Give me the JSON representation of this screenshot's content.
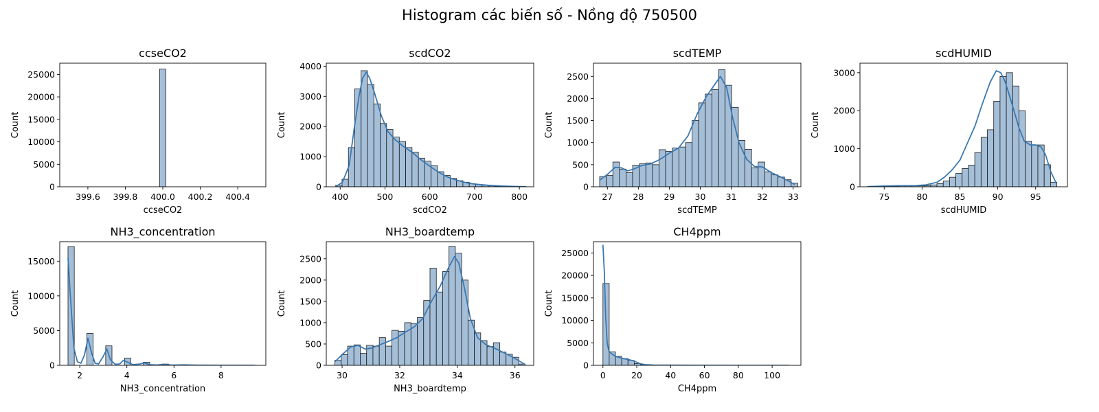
{
  "figure": {
    "suptitle": "Histogram các biến số - Nồng độ 750500",
    "colors": {
      "bar_fill": "#a5bfd9",
      "bar_edge": "#1a1a1a",
      "kde": "#3a78b0",
      "axes": "#000000"
    }
  },
  "chart_data": [
    {
      "type": "bar",
      "title": "ccseCO2",
      "xlabel": "ccseCO2",
      "ylabel": "Count",
      "xlim": [
        399.45,
        400.55
      ],
      "ylim": [
        0,
        27500
      ],
      "xticks": [
        399.6,
        399.8,
        400.0,
        400.2,
        400.4
      ],
      "xtick_labels": [
        "399.6",
        "399.8",
        "400.0",
        "400.2",
        "400.4"
      ],
      "yticks": [
        0,
        5000,
        10000,
        15000,
        20000,
        25000
      ],
      "bins": {
        "start": 399.983,
        "width": 0.0333
      },
      "values": [
        26200
      ],
      "kde": []
    },
    {
      "type": "bar",
      "title": "scdCO2",
      "xlabel": "scdCO2",
      "ylabel": "Count",
      "xlim": [
        369,
        832
      ],
      "ylim": [
        0,
        4100
      ],
      "xticks": [
        400,
        500,
        600,
        700,
        800
      ],
      "xtick_labels": [
        "400",
        "500",
        "600",
        "700",
        "800"
      ],
      "yticks": [
        0,
        1000,
        2000,
        3000,
        4000
      ],
      "bins": {
        "start": 390,
        "width": 14.2
      },
      "values": [
        50,
        250,
        1300,
        3250,
        3850,
        3400,
        2750,
        2100,
        1900,
        1650,
        1500,
        1300,
        1150,
        950,
        850,
        700,
        500,
        380,
        280,
        200,
        150,
        100,
        70,
        50,
        30,
        20,
        12,
        8,
        5,
        3
      ],
      "kde": [
        [
          390,
          0
        ],
        [
          405,
          150
        ],
        [
          420,
          700
        ],
        [
          432,
          2000
        ],
        [
          442,
          3000
        ],
        [
          450,
          3600
        ],
        [
          458,
          3800
        ],
        [
          466,
          3600
        ],
        [
          478,
          3050
        ],
        [
          492,
          2350
        ],
        [
          506,
          1850
        ],
        [
          520,
          1600
        ],
        [
          540,
          1350
        ],
        [
          560,
          1150
        ],
        [
          580,
          900
        ],
        [
          600,
          680
        ],
        [
          620,
          480
        ],
        [
          640,
          320
        ],
        [
          660,
          220
        ],
        [
          680,
          140
        ],
        [
          700,
          90
        ],
        [
          730,
          50
        ],
        [
          760,
          25
        ],
        [
          790,
          10
        ],
        [
          815,
          5
        ]
      ]
    },
    {
      "type": "bar",
      "title": "scdTEMP",
      "xlabel": "scdTEMP",
      "ylabel": "Count",
      "xlim": [
        26.55,
        33.25
      ],
      "ylim": [
        0,
        2800
      ],
      "xticks": [
        27,
        28,
        29,
        30,
        31,
        32,
        33
      ],
      "xtick_labels": [
        "27",
        "28",
        "29",
        "30",
        "31",
        "32",
        "33"
      ],
      "yticks": [
        0,
        500,
        1000,
        1500,
        2000,
        2500
      ],
      "bins": {
        "start": 26.75,
        "width": 0.2133
      },
      "values": [
        230,
        260,
        560,
        400,
        320,
        490,
        520,
        540,
        500,
        840,
        800,
        880,
        900,
        1000,
        1500,
        1900,
        2100,
        2200,
        2650,
        2300,
        1800,
        1050,
        850,
        430,
        560,
        340,
        270,
        220,
        160,
        80
      ],
      "kde": [
        [
          26.75,
          150
        ],
        [
          27.0,
          280
        ],
        [
          27.25,
          440
        ],
        [
          27.45,
          430
        ],
        [
          27.65,
          360
        ],
        [
          27.85,
          400
        ],
        [
          28.1,
          480
        ],
        [
          28.4,
          520
        ],
        [
          28.7,
          620
        ],
        [
          29.0,
          760
        ],
        [
          29.3,
          880
        ],
        [
          29.6,
          1150
        ],
        [
          29.9,
          1650
        ],
        [
          30.2,
          2050
        ],
        [
          30.45,
          2300
        ],
        [
          30.65,
          2500
        ],
        [
          30.85,
          2250
        ],
        [
          31.05,
          1550
        ],
        [
          31.25,
          1000
        ],
        [
          31.5,
          620
        ],
        [
          31.75,
          460
        ],
        [
          32.0,
          450
        ],
        [
          32.3,
          320
        ],
        [
          32.6,
          220
        ],
        [
          32.85,
          130
        ],
        [
          33.05,
          50
        ]
      ]
    },
    {
      "type": "bar",
      "title": "scdHUMID",
      "xlabel": "scdHUMID",
      "ylabel": "Count",
      "xlim": [
        71.8,
        99.2
      ],
      "ylim": [
        0,
        3250
      ],
      "xticks": [
        75,
        80,
        85,
        90,
        95
      ],
      "xtick_labels": [
        "75",
        "80",
        "85",
        "90",
        "95"
      ],
      "yticks": [
        0,
        1000,
        2000,
        3000
      ],
      "bins": {
        "start": 72.8,
        "width": 0.8333
      },
      "values": [
        5,
        5,
        10,
        15,
        20,
        25,
        25,
        25,
        25,
        30,
        50,
        80,
        150,
        250,
        350,
        480,
        570,
        900,
        1300,
        1500,
        2250,
        2900,
        3000,
        2650,
        2000,
        1200,
        1100,
        1100,
        580,
        120
      ],
      "kde": [
        [
          72.8,
          5
        ],
        [
          75,
          20
        ],
        [
          77,
          30
        ],
        [
          79,
          30
        ],
        [
          80.5,
          50
        ],
        [
          82,
          120
        ],
        [
          83,
          260
        ],
        [
          84,
          450
        ],
        [
          85,
          700
        ],
        [
          86,
          1150
        ],
        [
          87,
          1600
        ],
        [
          88,
          2200
        ],
        [
          89,
          2750
        ],
        [
          89.8,
          3050
        ],
        [
          90.4,
          3000
        ],
        [
          91,
          2750
        ],
        [
          92,
          2100
        ],
        [
          92.8,
          1550
        ],
        [
          93.5,
          1200
        ],
        [
          94.3,
          1100
        ],
        [
          95,
          1100
        ],
        [
          95.7,
          1050
        ],
        [
          96.3,
          850
        ],
        [
          97,
          400
        ],
        [
          97.8,
          60
        ]
      ]
    },
    {
      "type": "bar",
      "title": "NH3_concentration",
      "xlabel": "NH3_concentration",
      "ylabel": "Count",
      "xlim": [
        1.15,
        9.9
      ],
      "ylim": [
        0,
        17800
      ],
      "xticks": [
        2,
        4,
        6,
        8
      ],
      "xtick_labels": [
        "2",
        "4",
        "6",
        "8"
      ],
      "yticks": [
        0,
        5000,
        10000,
        15000
      ],
      "bins": {
        "start": 1.5,
        "width": 0.2667
      },
      "values": [
        17100,
        0,
        0,
        4600,
        0,
        0,
        2800,
        0,
        0,
        1050,
        0,
        0,
        450,
        0,
        0,
        180,
        0,
        0,
        100,
        0,
        0,
        60,
        0,
        0,
        40,
        0,
        0,
        30,
        0,
        20
      ],
      "kde": [
        [
          1.5,
          15500
        ],
        [
          1.62,
          9000
        ],
        [
          1.75,
          2500
        ],
        [
          1.9,
          500
        ],
        [
          2.05,
          300
        ],
        [
          2.2,
          1500
        ],
        [
          2.35,
          3900
        ],
        [
          2.5,
          1800
        ],
        [
          2.65,
          300
        ],
        [
          2.8,
          200
        ],
        [
          3.0,
          1300
        ],
        [
          3.15,
          2350
        ],
        [
          3.3,
          800
        ],
        [
          3.5,
          150
        ],
        [
          3.7,
          200
        ],
        [
          3.85,
          700
        ],
        [
          4.0,
          500
        ],
        [
          4.25,
          100
        ],
        [
          4.55,
          180
        ],
        [
          4.75,
          350
        ],
        [
          4.95,
          100
        ],
        [
          5.3,
          50
        ],
        [
          5.55,
          150
        ],
        [
          5.9,
          30
        ],
        [
          6.4,
          60
        ],
        [
          7.0,
          20
        ],
        [
          8.0,
          10
        ],
        [
          9.4,
          5
        ]
      ]
    },
    {
      "type": "bar",
      "title": "NH3_boardtemp",
      "xlabel": "NH3_boardtemp",
      "ylabel": "Count",
      "xlim": [
        29.45,
        36.65
      ],
      "ylim": [
        0,
        2900
      ],
      "xticks": [
        30,
        32,
        34,
        36
      ],
      "xtick_labels": [
        "30",
        "32",
        "34",
        "36"
      ],
      "yticks": [
        0,
        500,
        1000,
        1500,
        2000,
        2500
      ],
      "bins": {
        "start": 29.75,
        "width": 0.22
      },
      "values": [
        120,
        250,
        450,
        480,
        280,
        470,
        450,
        650,
        450,
        820,
        800,
        1000,
        980,
        1120,
        1520,
        2280,
        1720,
        2200,
        2790,
        2630,
        2000,
        1060,
        760,
        580,
        440,
        530,
        310,
        260,
        190,
        30
      ],
      "kde": [
        [
          29.75,
          80
        ],
        [
          30.0,
          250
        ],
        [
          30.3,
          430
        ],
        [
          30.55,
          470
        ],
        [
          30.8,
          380
        ],
        [
          31.0,
          400
        ],
        [
          31.3,
          480
        ],
        [
          31.6,
          560
        ],
        [
          31.9,
          650
        ],
        [
          32.2,
          780
        ],
        [
          32.5,
          900
        ],
        [
          32.8,
          1100
        ],
        [
          33.1,
          1500
        ],
        [
          33.4,
          1850
        ],
        [
          33.7,
          2300
        ],
        [
          33.9,
          2550
        ],
        [
          34.05,
          2400
        ],
        [
          34.25,
          1800
        ],
        [
          34.45,
          1100
        ],
        [
          34.7,
          650
        ],
        [
          35.0,
          480
        ],
        [
          35.3,
          400
        ],
        [
          35.6,
          300
        ],
        [
          35.9,
          200
        ],
        [
          36.2,
          80
        ],
        [
          36.35,
          20
        ]
      ]
    },
    {
      "type": "bar",
      "title": "CH4ppm",
      "xlabel": "CH4ppm",
      "ylabel": "Count",
      "xlim": [
        -5.6,
        117
      ],
      "ylim": [
        0,
        27500
      ],
      "xticks": [
        0,
        20,
        40,
        60,
        80,
        100
      ],
      "xtick_labels": [
        "0",
        "20",
        "40",
        "60",
        "80",
        "100"
      ],
      "yticks": [
        0,
        5000,
        10000,
        15000,
        20000,
        25000
      ],
      "bins": {
        "start": 0,
        "width": 3.7
      },
      "values": [
        18200,
        3000,
        2000,
        1500,
        1100,
        400,
        150,
        80,
        50,
        30,
        25,
        20,
        15,
        10,
        10,
        8,
        8,
        6,
        5,
        5,
        4,
        4,
        3,
        3,
        3,
        2,
        2,
        2,
        2,
        2
      ],
      "kde": [
        [
          0,
          26800
        ],
        [
          0.8,
          21000
        ],
        [
          1.6,
          11000
        ],
        [
          2.5,
          5000
        ],
        [
          3.5,
          3200
        ],
        [
          5,
          2600
        ],
        [
          7,
          2100
        ],
        [
          9,
          1800
        ],
        [
          12,
          1500
        ],
        [
          15,
          1300
        ],
        [
          18,
          1000
        ],
        [
          20,
          700
        ],
        [
          22,
          350
        ],
        [
          25,
          150
        ],
        [
          30,
          60
        ],
        [
          40,
          30
        ],
        [
          60,
          10
        ],
        [
          80,
          5
        ],
        [
          110,
          2
        ]
      ]
    }
  ]
}
